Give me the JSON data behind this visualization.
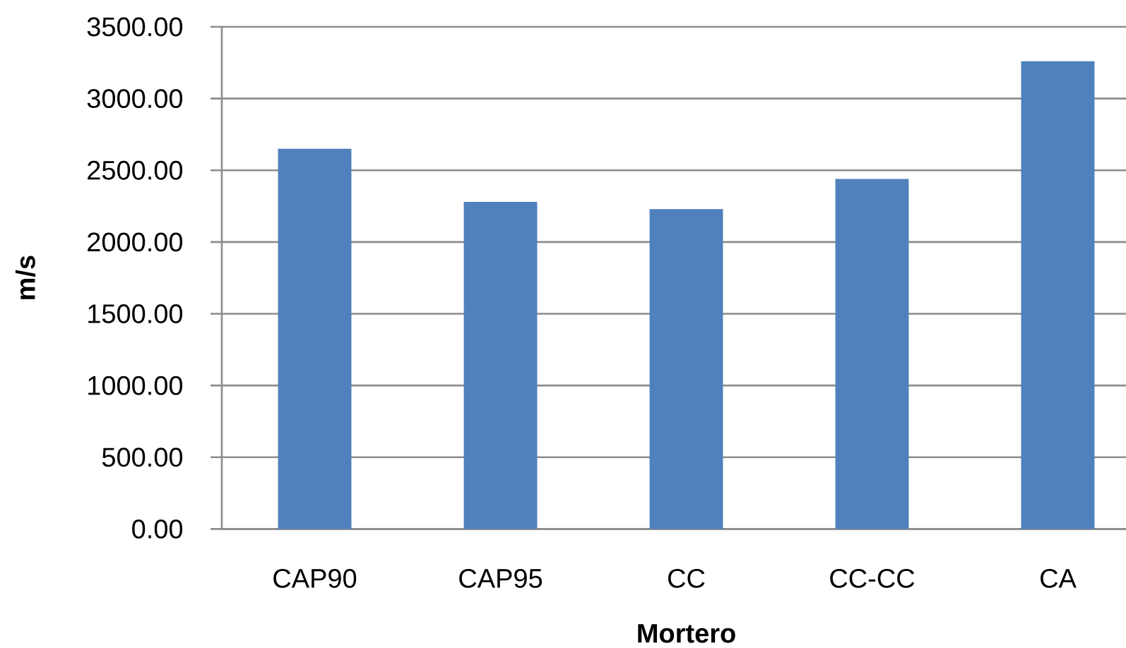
{
  "chart_data": {
    "type": "bar",
    "xlabel": "Mortero",
    "ylabel": "m/s",
    "categories": [
      "CAP90",
      "CAP95",
      "CC",
      "CC-CC",
      "CA"
    ],
    "values": [
      2650,
      2280,
      2230,
      2440,
      3260
    ],
    "color": "#4f81bd",
    "ylim": [
      0,
      3500
    ],
    "yticks": [
      {
        "value": 0,
        "label": "0.00"
      },
      {
        "value": 500,
        "label": "500.00"
      },
      {
        "value": 1000,
        "label": "1000.00"
      },
      {
        "value": 1500,
        "label": "1500.00"
      },
      {
        "value": 2000,
        "label": "2000.00"
      },
      {
        "value": 2500,
        "label": "2500.00"
      },
      {
        "value": 3000,
        "label": "3000.00"
      },
      {
        "value": 3500,
        "label": "3500.00"
      }
    ],
    "grid": "y"
  }
}
